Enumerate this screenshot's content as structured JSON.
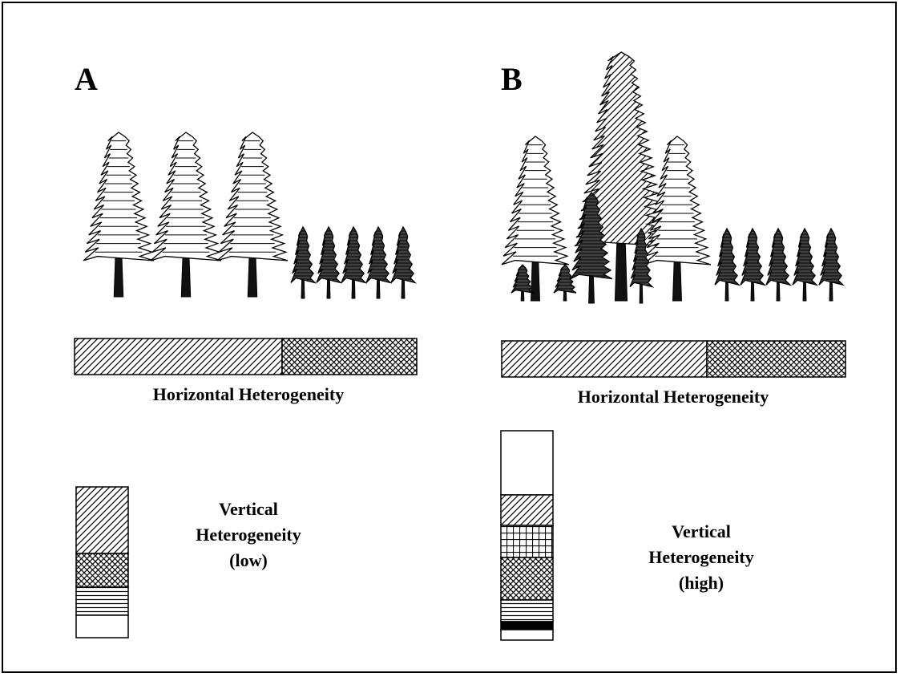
{
  "panels": [
    {
      "label": "A",
      "horizontal_label": "Horizontal Heterogeneity",
      "vertical_label": [
        "Vertical",
        "Heterogeneity",
        "(low)"
      ]
    },
    {
      "label": "B",
      "horizontal_label": "Horizontal Heterogeneity",
      "vertical_label": [
        "Vertical",
        "Heterogeneity",
        "(high)"
      ]
    }
  ]
}
